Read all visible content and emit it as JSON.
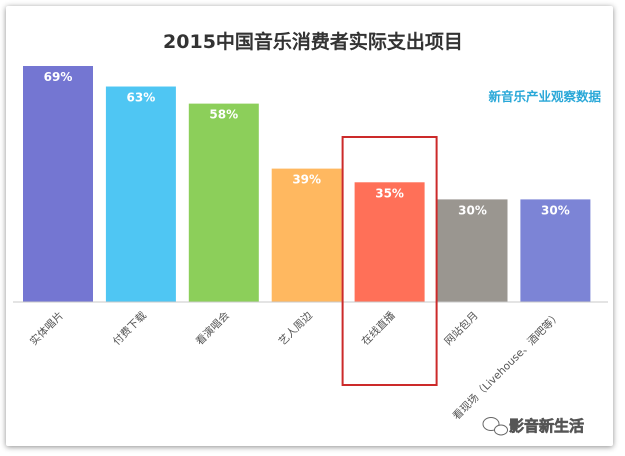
{
  "chart_data": {
    "type": "bar",
    "title": "2015中国音乐消费者实际支出项目",
    "subtitle": "新音乐产业观察数据",
    "categories": [
      "实体唱片",
      "付费下载",
      "看演唱会",
      "艺人周边",
      "在线直播",
      "网站包月",
      "看现场（Livehouse、酒吧等）"
    ],
    "values": [
      69,
      63,
      58,
      39,
      35,
      30,
      30
    ],
    "value_labels": [
      "69%",
      "63%",
      "58%",
      "39%",
      "35%",
      "30%",
      "30%"
    ],
    "colors": [
      "#7476d2",
      "#4fc6f3",
      "#8ccf5a",
      "#ffb860",
      "#ff7058",
      "#9a9690",
      "#7c84d6"
    ],
    "highlight_category": "在线直播",
    "highlight_color": "#cc2a2a",
    "ylim": [
      0,
      69
    ],
    "grid": false,
    "legend": "none"
  },
  "watermark": {
    "text": "影音新生活",
    "icon": "wechat-logo-icon"
  }
}
